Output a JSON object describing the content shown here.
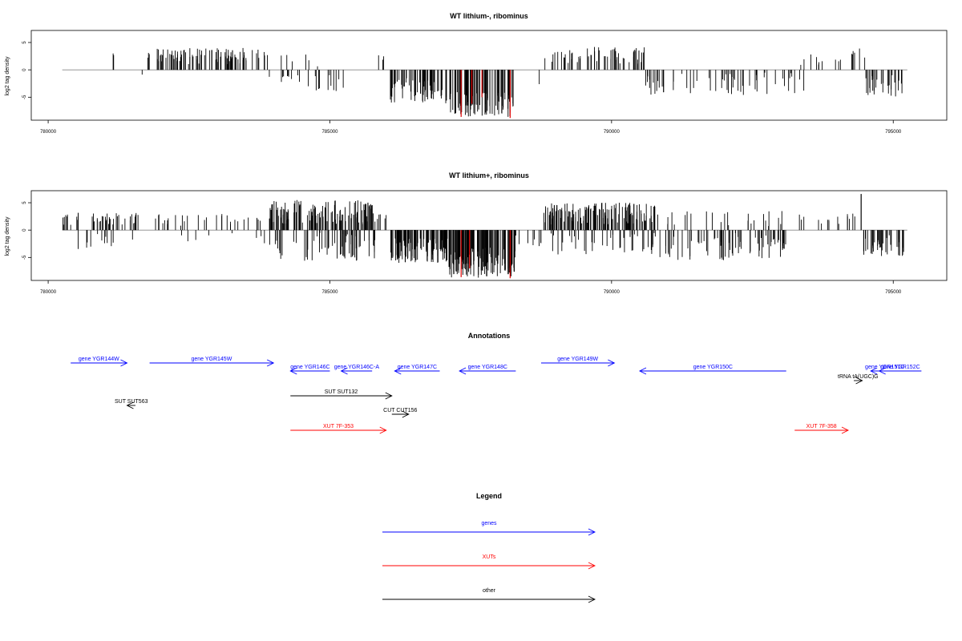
{
  "chart_data": [
    {
      "type": "bar",
      "title": "WT lithium-, ribominus",
      "xlabel": "",
      "ylabel": "log2 tag density",
      "xlim": [
        779700,
        795950
      ],
      "ylim": [
        -9.2,
        7.2
      ],
      "x_ticks": [
        {
          "value": 780000,
          "label": "780000"
        },
        {
          "value": 785000,
          "label": "785000"
        },
        {
          "value": 790000,
          "label": "790000"
        },
        {
          "value": 795000,
          "label": "795000"
        }
      ],
      "y_ticks": [
        {
          "value": -5,
          "label": "-5"
        },
        {
          "value": 0,
          "label": "0"
        },
        {
          "value": 5,
          "label": "5"
        }
      ],
      "baseline_range": [
        780250,
        795250
      ],
      "highlight_color": "#e00000",
      "segments": [
        {
          "from": 780900,
          "to": 781300,
          "sign": 1,
          "min": 2.5,
          "max": 3.0,
          "count": 2
        },
        {
          "from": 781600,
          "to": 781700,
          "sign": -1,
          "min": 0.5,
          "max": 1.0,
          "count": 1
        },
        {
          "from": 781750,
          "to": 783900,
          "sign": 1,
          "min": 1.0,
          "max": 4.0,
          "count": 95
        },
        {
          "from": 783900,
          "to": 784500,
          "sign": -1,
          "min": 0.3,
          "max": 2.3,
          "count": 10
        },
        {
          "from": 784000,
          "to": 784800,
          "sign": 1,
          "min": 0.5,
          "max": 2.8,
          "count": 6
        },
        {
          "from": 784600,
          "to": 785300,
          "sign": -1,
          "min": 0.5,
          "max": 4.0,
          "count": 12
        },
        {
          "from": 785800,
          "to": 786000,
          "sign": 1,
          "min": 1.5,
          "max": 2.8,
          "count": 3
        },
        {
          "from": 786050,
          "to": 787000,
          "sign": -1,
          "min": 1.5,
          "max": 6.0,
          "count": 60
        },
        {
          "from": 787050,
          "to": 788300,
          "sign": -1,
          "min": 4.0,
          "max": 8.6,
          "count": 90
        },
        {
          "from": 788700,
          "to": 788800,
          "sign": -1,
          "min": 2.5,
          "max": 3.0,
          "count": 1
        },
        {
          "from": 788800,
          "to": 790600,
          "sign": 1,
          "min": 0.8,
          "max": 4.2,
          "count": 60
        },
        {
          "from": 790600,
          "to": 793500,
          "sign": -1,
          "min": 0.5,
          "max": 4.8,
          "count": 60
        },
        {
          "from": 793300,
          "to": 794100,
          "sign": 1,
          "min": 0.8,
          "max": 3.0,
          "count": 10
        },
        {
          "from": 794200,
          "to": 794500,
          "sign": 1,
          "min": 0.5,
          "max": 4.2,
          "count": 6
        },
        {
          "from": 794500,
          "to": 795200,
          "sign": -1,
          "min": 0.8,
          "max": 5.0,
          "count": 30
        }
      ],
      "highlights": [
        {
          "x": 787330,
          "value": -8.6
        },
        {
          "x": 787520,
          "value": -6.2
        },
        {
          "x": 787700,
          "value": -5.0
        },
        {
          "x": 788200,
          "value": -8.8
        }
      ]
    },
    {
      "type": "bar",
      "title": "WT lithium+, ribominus",
      "xlabel": "",
      "ylabel": "log2 tag density",
      "xlim": [
        779700,
        795950
      ],
      "ylim": [
        -9.2,
        7.2
      ],
      "x_ticks": [
        {
          "value": 780000,
          "label": "780000"
        },
        {
          "value": 785000,
          "label": "785000"
        },
        {
          "value": 790000,
          "label": "790000"
        },
        {
          "value": 795000,
          "label": "795000"
        }
      ],
      "y_ticks": [
        {
          "value": -5,
          "label": "-5"
        },
        {
          "value": 0,
          "label": "0"
        },
        {
          "value": 5,
          "label": "5"
        }
      ],
      "baseline_range": [
        780250,
        795250
      ],
      "highlight_color": "#e00000",
      "segments": [
        {
          "from": 780250,
          "to": 781600,
          "sign": 1,
          "min": 0.8,
          "max": 3.2,
          "count": 45
        },
        {
          "from": 780250,
          "to": 781600,
          "sign": -1,
          "min": 0.3,
          "max": 3.6,
          "count": 12
        },
        {
          "from": 781900,
          "to": 783900,
          "sign": 1,
          "min": 0.8,
          "max": 3.0,
          "count": 30
        },
        {
          "from": 781900,
          "to": 783900,
          "sign": -1,
          "min": 0.3,
          "max": 2.5,
          "count": 8
        },
        {
          "from": 783900,
          "to": 785800,
          "sign": 1,
          "min": 1.0,
          "max": 5.5,
          "count": 130
        },
        {
          "from": 783900,
          "to": 785800,
          "sign": -1,
          "min": 0.5,
          "max": 6.0,
          "count": 60
        },
        {
          "from": 785800,
          "to": 786050,
          "sign": 1,
          "min": 1.5,
          "max": 3.0,
          "count": 6
        },
        {
          "from": 786050,
          "to": 787100,
          "sign": -1,
          "min": 1.5,
          "max": 6.0,
          "count": 110
        },
        {
          "from": 787100,
          "to": 788300,
          "sign": -1,
          "min": 3.0,
          "max": 8.7,
          "count": 130
        },
        {
          "from": 788300,
          "to": 788800,
          "sign": -1,
          "min": 0.5,
          "max": 3.0,
          "count": 8
        },
        {
          "from": 788800,
          "to": 790800,
          "sign": 1,
          "min": 1.0,
          "max": 5.0,
          "count": 140
        },
        {
          "from": 788800,
          "to": 790800,
          "sign": -1,
          "min": 0.5,
          "max": 4.5,
          "count": 40
        },
        {
          "from": 790800,
          "to": 793100,
          "sign": 1,
          "min": 0.5,
          "max": 3.5,
          "count": 25
        },
        {
          "from": 790800,
          "to": 793100,
          "sign": -1,
          "min": 0.5,
          "max": 5.5,
          "count": 70
        },
        {
          "from": 793300,
          "to": 794400,
          "sign": 1,
          "min": 0.8,
          "max": 3.2,
          "count": 15
        },
        {
          "from": 794450,
          "to": 795200,
          "sign": -1,
          "min": 0.8,
          "max": 4.8,
          "count": 40
        }
      ],
      "spikes": [
        {
          "x": 794430,
          "value": 6.6
        }
      ],
      "highlights": [
        {
          "x": 787330,
          "value": -8.6
        },
        {
          "x": 787480,
          "value": -7.0
        },
        {
          "x": 788200,
          "value": -8.8
        }
      ]
    }
  ],
  "annotations": {
    "title": "Annotations",
    "genome_range": [
      779700,
      795950
    ],
    "items": [
      {
        "label": "gene YGR144W",
        "from": 780400,
        "to": 781400,
        "strand": "+",
        "row": 0,
        "color": "#0000ff"
      },
      {
        "label": "gene YGR145W",
        "from": 781800,
        "to": 784000,
        "strand": "+",
        "row": 0,
        "color": "#0000ff"
      },
      {
        "label": "gene YGR146C",
        "from": 784300,
        "to": 785000,
        "strand": "-",
        "row": 1,
        "color": "#0000ff"
      },
      {
        "label": "gene YGR146C-A",
        "from": 785200,
        "to": 785750,
        "strand": "-",
        "row": 1,
        "color": "#0000ff"
      },
      {
        "label": "gene YGR147C",
        "from": 786150,
        "to": 786950,
        "strand": "-",
        "row": 1,
        "color": "#0000ff"
      },
      {
        "label": "gene YGR148C",
        "from": 787300,
        "to": 788300,
        "strand": "-",
        "row": 1,
        "color": "#0000ff"
      },
      {
        "label": "gene YGR149W",
        "from": 788750,
        "to": 790050,
        "strand": "+",
        "row": 0,
        "color": "#0000ff"
      },
      {
        "label": "gene YGR150C",
        "from": 790500,
        "to": 793100,
        "strand": "-",
        "row": 1,
        "color": "#0000ff"
      },
      {
        "label": "gene YGR151C",
        "from": 794600,
        "to": 795100,
        "strand": "-",
        "row": 1,
        "color": "#0000ff"
      },
      {
        "label": "gene YGR152C",
        "from": 794750,
        "to": 795500,
        "strand": "-",
        "row": 1,
        "color": "#0000ff"
      },
      {
        "label": "tRNA tA(UGC)G",
        "from": 794300,
        "to": 794450,
        "strand": "+",
        "row": 2,
        "color": "#000000"
      },
      {
        "label": "SUT SUT563",
        "from": 781400,
        "to": 781550,
        "strand": "-",
        "row": 3,
        "color": "#000000"
      },
      {
        "label": "SUT SUT132",
        "from": 784300,
        "to": 786100,
        "strand": "+",
        "row": 4,
        "color": "#000000"
      },
      {
        "label": "CUT CUT156",
        "from": 786100,
        "to": 786400,
        "strand": "+",
        "row": 5,
        "color": "#000000"
      },
      {
        "label": "XUT 7F-353",
        "from": 784300,
        "to": 786000,
        "strand": "+",
        "row": 6,
        "color": "#ff0000"
      },
      {
        "label": "XUT 7F-358",
        "from": 793250,
        "to": 794200,
        "strand": "+",
        "row": 6,
        "color": "#ff0000"
      }
    ]
  },
  "legend": {
    "title": "Legend",
    "items": [
      {
        "label": "genes",
        "color": "#0000ff"
      },
      {
        "label": "XUTs",
        "color": "#ff0000"
      },
      {
        "label": "other",
        "color": "#000000"
      }
    ]
  }
}
